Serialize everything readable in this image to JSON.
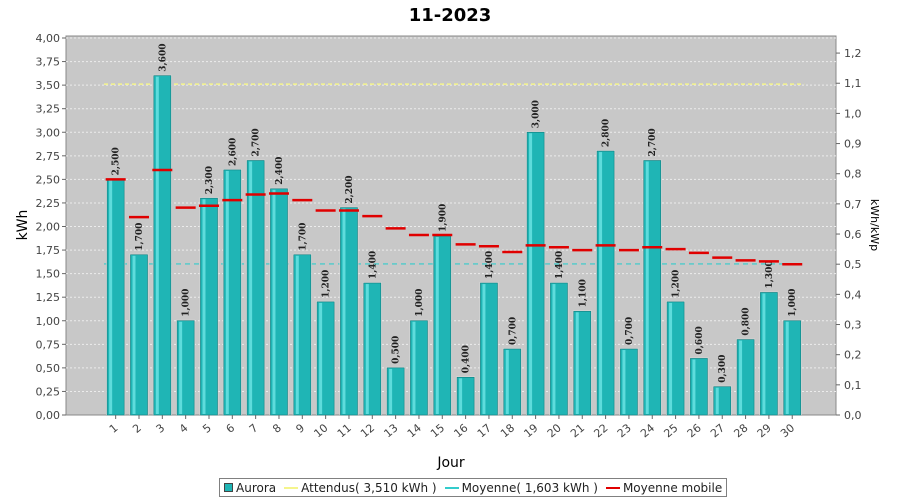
{
  "chart_data": {
    "type": "bar",
    "title": "11-2023",
    "xlabel": "Jour",
    "ylabel": "kWh",
    "y2label": "kWh/kWp",
    "categories": [
      "1",
      "2",
      "3",
      "4",
      "5",
      "6",
      "7",
      "8",
      "9",
      "10",
      "11",
      "12",
      "13",
      "14",
      "15",
      "16",
      "17",
      "18",
      "19",
      "20",
      "21",
      "22",
      "23",
      "24",
      "25",
      "26",
      "27",
      "28",
      "29",
      "30"
    ],
    "series": [
      {
        "name": "Aurora",
        "kind": "bar",
        "color": "#1fb5b5",
        "values": [
          2.5,
          1.7,
          3.6,
          1.0,
          2.3,
          2.6,
          2.7,
          2.4,
          1.7,
          1.2,
          2.2,
          1.4,
          0.5,
          1.0,
          1.9,
          0.4,
          1.4,
          0.7,
          3.0,
          1.4,
          1.1,
          2.8,
          0.7,
          2.7,
          1.2,
          0.6,
          0.3,
          0.8,
          1.3,
          1.0
        ],
        "labels": [
          "2,500",
          "1,700",
          "3,600",
          "1,000",
          "2,300",
          "2,600",
          "2,700",
          "2,400",
          "1,700",
          "1,200",
          "2,200",
          "1,400",
          "0,500",
          "1,000",
          "1,900",
          "0,400",
          "1,400",
          "0,700",
          "3,000",
          "1,400",
          "1,100",
          "2,800",
          "0,700",
          "2,700",
          "1,200",
          "0,600",
          "0,300",
          "0,800",
          "1,300",
          "1,000"
        ]
      },
      {
        "name": "Attendus( 3,510 kWh )",
        "kind": "line",
        "color": "#f5f58c",
        "value": 3.51
      },
      {
        "name": "Moyenne( 1,603 kWh )",
        "kind": "line",
        "color": "#33cccc",
        "value": 1.603
      },
      {
        "name": "Moyenne mobile",
        "kind": "marker",
        "color": "#e00000",
        "values": [
          2.5,
          2.1,
          2.6,
          2.2,
          2.22,
          2.28,
          2.34,
          2.35,
          2.28,
          2.17,
          2.17,
          2.11,
          1.98,
          1.91,
          1.91,
          1.81,
          1.79,
          1.73,
          1.8,
          1.78,
          1.75,
          1.8,
          1.75,
          1.78,
          1.76,
          1.72,
          1.67,
          1.64,
          1.63,
          1.6
        ]
      }
    ],
    "ylim": [
      0,
      4.0
    ],
    "yticks": [
      "0,00",
      "0,25",
      "0,50",
      "0,75",
      "1,00",
      "1,25",
      "1,50",
      "1,75",
      "2,00",
      "2,25",
      "2,50",
      "2,75",
      "3,00",
      "3,25",
      "3,50",
      "3,75",
      "4,00"
    ],
    "y2lim": [
      0,
      1.25
    ],
    "y2ticks": [
      "0,0",
      "0,1",
      "0,2",
      "0,3",
      "0,4",
      "0,5",
      "0,6",
      "0,7",
      "0,8",
      "0,9",
      "1,0",
      "1,1",
      "1,2"
    ],
    "grid": true,
    "legend_position": "bottom"
  }
}
